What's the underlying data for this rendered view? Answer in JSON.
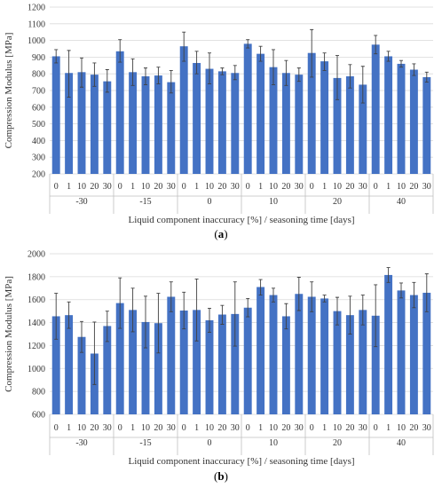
{
  "chart_data": [
    {
      "type": "bar",
      "panel_label_letter": "a",
      "ylabel": "Compression Modulus [MPa]",
      "xlabel": "Liquid component inaccuracy [%] / seasoning time [days]",
      "ylim": [
        200,
        1200
      ],
      "ytick_step": 100,
      "groups": [
        "-30",
        "-15",
        "0",
        "10",
        "20",
        "40"
      ],
      "subcategories": [
        "0",
        "1",
        "10",
        "20",
        "30"
      ],
      "values": [
        [
          905,
          805,
          810,
          795,
          755
        ],
        [
          935,
          810,
          785,
          790,
          750
        ],
        [
          965,
          865,
          830,
          815,
          805
        ],
        [
          980,
          920,
          840,
          805,
          795
        ],
        [
          925,
          875,
          775,
          785,
          735
        ],
        [
          975,
          905,
          860,
          825,
          780
        ]
      ],
      "error_high": [
        [
          945,
          940,
          895,
          865,
          825
        ],
        [
          1005,
          890,
          835,
          840,
          820
        ],
        [
          1050,
          935,
          925,
          835,
          850
        ],
        [
          1005,
          965,
          945,
          880,
          835
        ],
        [
          1065,
          925,
          910,
          855,
          845
        ],
        [
          1030,
          935,
          880,
          860,
          810
        ]
      ],
      "error_low": [
        [
          865,
          660,
          720,
          725,
          690
        ],
        [
          870,
          730,
          735,
          740,
          685
        ],
        [
          875,
          800,
          740,
          795,
          765
        ],
        [
          955,
          875,
          735,
          730,
          755
        ],
        [
          780,
          820,
          645,
          715,
          625
        ],
        [
          920,
          875,
          840,
          790,
          750
        ]
      ],
      "bar_color": "#4472c4",
      "grid": true
    },
    {
      "type": "bar",
      "panel_label_letter": "b",
      "ylabel": "Compression Modulus [MPa]",
      "xlabel": "Liquid component inaccuracy [%] / seasoning time [days]",
      "ylim": [
        600,
        2000
      ],
      "ytick_step": 200,
      "groups": [
        "-30",
        "-15",
        "0",
        "10",
        "20",
        "40"
      ],
      "subcategories": [
        "0",
        "1",
        "10",
        "20",
        "30"
      ],
      "values": [
        [
          1455,
          1465,
          1275,
          1130,
          1370
        ],
        [
          1570,
          1510,
          1405,
          1395,
          1625
        ],
        [
          1505,
          1510,
          1420,
          1470,
          1475
        ],
        [
          1530,
          1710,
          1640,
          1455,
          1650
        ],
        [
          1625,
          1610,
          1500,
          1465,
          1510
        ],
        [
          1460,
          1815,
          1680,
          1640,
          1660
        ]
      ],
      "error_high": [
        [
          1655,
          1580,
          1410,
          1405,
          1500
        ],
        [
          1790,
          1700,
          1630,
          1655,
          1755
        ],
        [
          1665,
          1780,
          1525,
          1550,
          1755
        ],
        [
          1610,
          1775,
          1700,
          1565,
          1795
        ],
        [
          1755,
          1640,
          1620,
          1630,
          1640
        ],
        [
          1730,
          1880,
          1745,
          1750,
          1825
        ]
      ],
      "error_low": [
        [
          1255,
          1350,
          1140,
          860,
          1235
        ],
        [
          1350,
          1320,
          1180,
          1135,
          1495
        ],
        [
          1345,
          1240,
          1315,
          1385,
          1195
        ],
        [
          1450,
          1640,
          1580,
          1345,
          1505
        ],
        [
          1495,
          1580,
          1380,
          1300,
          1380
        ],
        [
          1190,
          1750,
          1615,
          1530,
          1495
        ]
      ],
      "bar_color": "#4472c4",
      "grid": true
    }
  ]
}
